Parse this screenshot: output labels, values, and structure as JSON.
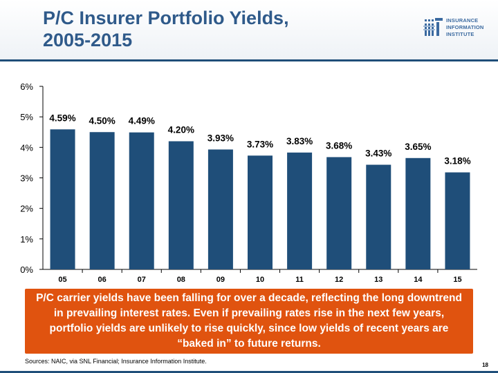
{
  "header": {
    "title_line1": "P/C Insurer Portfolio Yields,",
    "title_line2": "2005-2015"
  },
  "logo": {
    "line1": "INSURANCE",
    "line2": "INFORMATION",
    "line3": "INSTITUTE",
    "icon": "iii-logo-icon",
    "color": "#3b6aa0"
  },
  "chart_data": {
    "type": "bar",
    "categories": [
      "05",
      "06",
      "07",
      "08",
      "09",
      "10",
      "11",
      "12",
      "13",
      "14",
      "15"
    ],
    "values": [
      4.59,
      4.5,
      4.49,
      4.2,
      3.93,
      3.73,
      3.83,
      3.68,
      3.43,
      3.65,
      3.18
    ],
    "data_labels": [
      "4.59%",
      "4.50%",
      "4.49%",
      "4.20%",
      "3.93%",
      "3.73%",
      "3.83%",
      "3.68%",
      "3.43%",
      "3.65%",
      "3.18%"
    ],
    "y_ticks": [
      0,
      1,
      2,
      3,
      4,
      5,
      6
    ],
    "y_tick_labels": [
      "0%",
      "1%",
      "2%",
      "3%",
      "4%",
      "5%",
      "6%"
    ],
    "ylim": [
      0,
      6
    ],
    "grid": false,
    "legend": "none",
    "bar_color": "#1f4e79"
  },
  "callout": {
    "text": "P/C carrier yields have been falling for over a decade, reflecting the long downtrend in prevailing interest rates. Even if prevailing rates rise in the next few years, portfolio yields are unlikely to rise quickly, since low yields of recent years are “baked in” to future returns.",
    "color": "#e0530f"
  },
  "footer": {
    "source": "Sources: NAIC, via SNL Financial; Insurance Information Institute.",
    "page_number": "18"
  }
}
